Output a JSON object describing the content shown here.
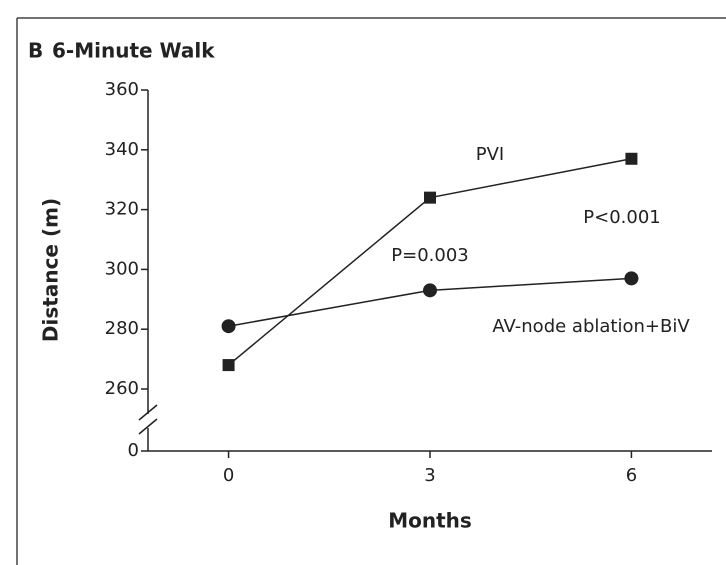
{
  "chart_data": {
    "type": "line",
    "panel_label": "B",
    "title": "6-Minute Walk",
    "x_label": "Months",
    "y_label": "Distance (m)",
    "x": [
      0,
      3,
      6
    ],
    "series": [
      {
        "name": "PVI",
        "color": "#222222",
        "marker": "square",
        "values": [
          268,
          324,
          337
        ]
      },
      {
        "name": "AV-node ablation+BiV",
        "color": "#222222",
        "marker": "circle",
        "values": [
          281,
          293,
          297
        ]
      }
    ],
    "xlim": [
      -1.2,
      7.2
    ],
    "xticks": [
      0,
      3,
      6
    ],
    "ylim": [
      0,
      360
    ],
    "yticks": [
      0,
      260,
      280,
      300,
      320,
      340,
      360
    ],
    "y_break": true,
    "annotations": [
      "P=0.003",
      "P<0.001"
    ]
  }
}
